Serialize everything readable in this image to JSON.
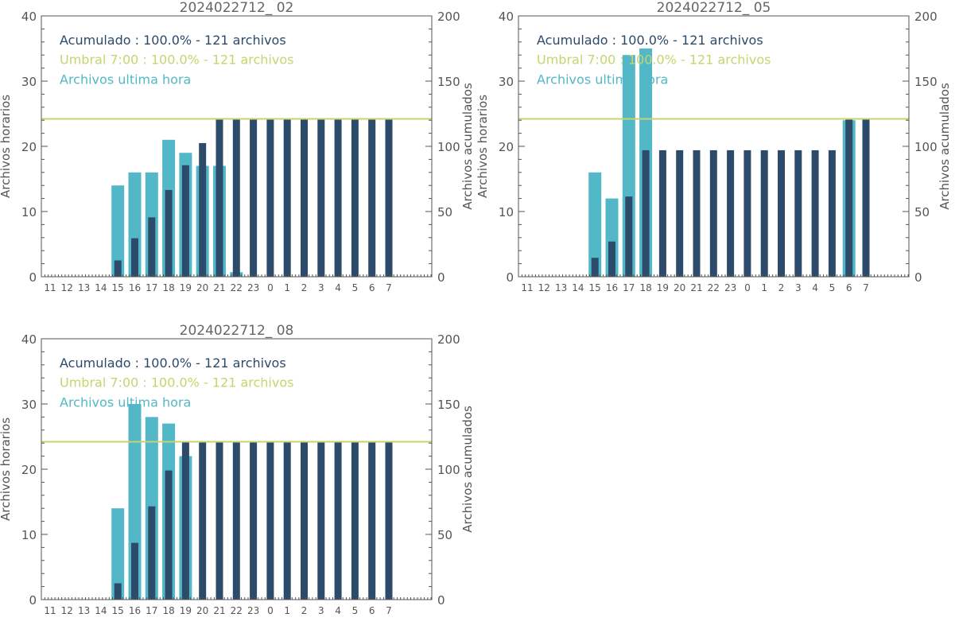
{
  "colors": {
    "hourly": "#52b7c6",
    "cumulative": "#2c4a6a",
    "threshold": "#c7d46e",
    "axis": "#555555",
    "title": "#666666"
  },
  "axis_labels": {
    "left": "Archivos horarios",
    "right": "Archivos acumulados"
  },
  "hours": [
    "11",
    "12",
    "13",
    "14",
    "15",
    "16",
    "17",
    "18",
    "19",
    "20",
    "21",
    "22",
    "23",
    "0",
    "1",
    "2",
    "3",
    "4",
    "5",
    "6",
    "7"
  ],
  "chart_data": [
    {
      "type": "bar",
      "title": "2024022712_ 02",
      "legend": [
        "Acumulado : 100.0% - 121 archivos",
        "Umbral 7:00 : 100.0% - 121 archivos",
        "Archivos ultima hora"
      ],
      "left_ylim": [
        0,
        40
      ],
      "right_ylim": [
        0,
        200
      ],
      "left_ticks": [
        "0",
        "10",
        "20",
        "30",
        "40"
      ],
      "right_ticks": [
        "0",
        "50",
        "100",
        "150",
        "200"
      ],
      "threshold": 121,
      "categories": [
        "11",
        "12",
        "13",
        "14",
        "15",
        "16",
        "17",
        "18",
        "19",
        "20",
        "21",
        "22",
        "23",
        "0",
        "1",
        "2",
        "3",
        "4",
        "5",
        "6",
        "7"
      ],
      "series": [
        {
          "name": "Archivos ultima hora",
          "axis": "left",
          "values": [
            0,
            0,
            0,
            0,
            14,
            16,
            16,
            21,
            19,
            17,
            17,
            0.7,
            0,
            0,
            0,
            0,
            0,
            0,
            0,
            0,
            0
          ]
        },
        {
          "name": "Acumulado",
          "axis": "right",
          "values": [
            0,
            0,
            0,
            0,
            12.5,
            29.5,
            45.5,
            66.5,
            85.5,
            102.5,
            121,
            121,
            121,
            121,
            121,
            121,
            121,
            121,
            121,
            121,
            121
          ]
        }
      ]
    },
    {
      "type": "bar",
      "title": "2024022712_ 05",
      "legend": [
        "Acumulado : 100.0% - 121 archivos",
        "Umbral 7:00 : 100.0% - 121 archivos",
        "Archivos ultima hora"
      ],
      "left_ylim": [
        0,
        40
      ],
      "right_ylim": [
        0,
        200
      ],
      "left_ticks": [
        "0",
        "10",
        "20",
        "30",
        "40"
      ],
      "right_ticks": [
        "0",
        "50",
        "100",
        "150",
        "200"
      ],
      "threshold": 121,
      "categories": [
        "11",
        "12",
        "13",
        "14",
        "15",
        "16",
        "17",
        "18",
        "19",
        "20",
        "21",
        "22",
        "23",
        "0",
        "1",
        "2",
        "3",
        "4",
        "5",
        "6",
        "7"
      ],
      "series": [
        {
          "name": "Archivos ultima hora",
          "axis": "left",
          "values": [
            0,
            0,
            0,
            0,
            16,
            12,
            34,
            35,
            0,
            0,
            0,
            0,
            0,
            0,
            0,
            0,
            0,
            0,
            0,
            24,
            0
          ]
        },
        {
          "name": "Acumulado",
          "axis": "right",
          "values": [
            0,
            0,
            0,
            0,
            14.5,
            27,
            61.5,
            97,
            97,
            97,
            97,
            97,
            97,
            97,
            97,
            97,
            97,
            97,
            97,
            121,
            121
          ]
        }
      ]
    },
    {
      "type": "bar",
      "title": "2024022712_ 08",
      "legend": [
        "Acumulado : 100.0% - 121 archivos",
        "Umbral 7:00 : 100.0% - 121 archivos",
        "Archivos ultima hora"
      ],
      "left_ylim": [
        0,
        40
      ],
      "right_ylim": [
        0,
        200
      ],
      "left_ticks": [
        "0",
        "10",
        "20",
        "30",
        "40"
      ],
      "right_ticks": [
        "0",
        "50",
        "100",
        "150",
        "200"
      ],
      "threshold": 121,
      "categories": [
        "11",
        "12",
        "13",
        "14",
        "15",
        "16",
        "17",
        "18",
        "19",
        "20",
        "21",
        "22",
        "23",
        "0",
        "1",
        "2",
        "3",
        "4",
        "5",
        "6",
        "7"
      ],
      "series": [
        {
          "name": "Archivos ultima hora",
          "axis": "left",
          "values": [
            0,
            0,
            0,
            0,
            14,
            30,
            28,
            27,
            22,
            0,
            0,
            0,
            0,
            0,
            0,
            0,
            0,
            0,
            0,
            0,
            0
          ]
        },
        {
          "name": "Acumulado",
          "axis": "right",
          "values": [
            0,
            0,
            0,
            0,
            12.5,
            43.5,
            71.5,
            99,
            121,
            121,
            121,
            121,
            121,
            121,
            121,
            121,
            121,
            121,
            121,
            121,
            121
          ]
        }
      ]
    }
  ]
}
